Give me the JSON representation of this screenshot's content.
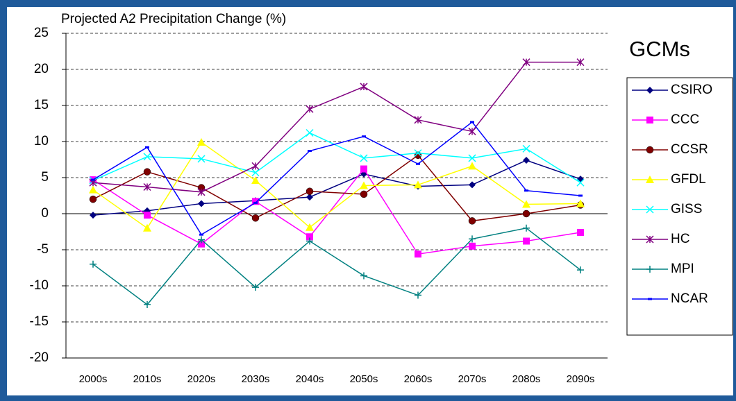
{
  "chart_data": {
    "type": "line",
    "title": "Projected A2 Precipitation Change (%)",
    "legend_title": "GCMs",
    "categories": [
      "2000s",
      "2010s",
      "2020s",
      "2030s",
      "2040s",
      "2050s",
      "2060s",
      "2070s",
      "2080s",
      "2090s"
    ],
    "ylim": [
      -20,
      25
    ],
    "yticks": [
      -20,
      -15,
      -10,
      -5,
      0,
      5,
      10,
      15,
      20,
      25
    ],
    "grid": true,
    "legend": "right",
    "series": [
      {
        "name": "CSIRO",
        "color": "#000080",
        "marker": "diamond",
        "values": [
          -0.2,
          0.4,
          1.4,
          1.8,
          2.3,
          5.5,
          3.8,
          4.0,
          7.4,
          4.8
        ]
      },
      {
        "name": "CCC",
        "color": "#ff00ff",
        "marker": "square",
        "values": [
          4.7,
          -0.2,
          -4.2,
          1.7,
          -3.2,
          6.2,
          -5.6,
          -4.5,
          -3.8,
          -2.6
        ]
      },
      {
        "name": "CCSR",
        "color": "#800000",
        "marker": "circle",
        "values": [
          2.0,
          5.8,
          3.6,
          -0.6,
          3.1,
          2.7,
          8.1,
          -1.0,
          0.0,
          1.2
        ]
      },
      {
        "name": "GFDL",
        "color": "#ffff00",
        "marker": "triangle",
        "values": [
          3.3,
          -2.0,
          9.9,
          4.6,
          -1.9,
          3.9,
          4.0,
          6.6,
          1.3,
          1.4
        ]
      },
      {
        "name": "GISS",
        "color": "#00ffff",
        "marker": "x",
        "values": [
          4.6,
          7.9,
          7.6,
          5.7,
          11.2,
          7.7,
          8.4,
          7.7,
          9.0,
          4.3
        ]
      },
      {
        "name": "HC",
        "color": "#800080",
        "marker": "star",
        "values": [
          4.3,
          3.7,
          3.0,
          6.6,
          14.5,
          17.6,
          13.0,
          11.4,
          21.0,
          21.0
        ]
      },
      {
        "name": "MPI",
        "color": "#008080",
        "marker": "plus",
        "values": [
          -7.0,
          -12.6,
          -3.6,
          -10.2,
          -3.8,
          -8.6,
          -11.3,
          -3.5,
          -2.0,
          -7.8
        ]
      },
      {
        "name": "NCAR",
        "color": "#0000ff",
        "marker": "dash",
        "values": [
          4.7,
          9.2,
          -2.9,
          1.5,
          8.7,
          10.7,
          6.9,
          12.7,
          3.2,
          2.5
        ]
      }
    ]
  }
}
